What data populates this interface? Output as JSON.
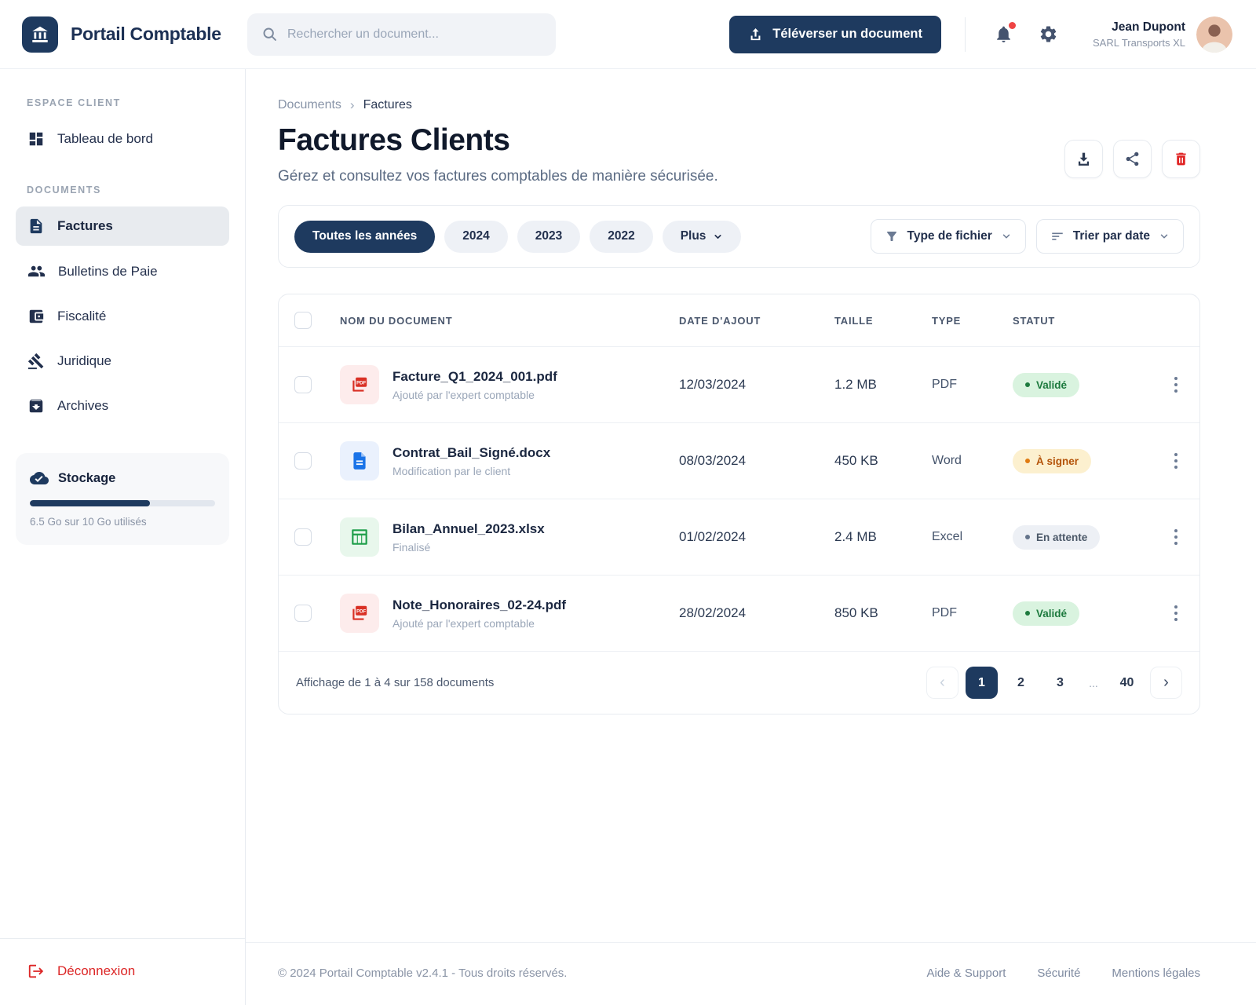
{
  "header": {
    "brand": "Portail Comptable",
    "search_placeholder": "Rechercher un document...",
    "upload_label": "Téléverser un document",
    "user": {
      "name": "Jean Dupont",
      "company": "SARL Transports XL"
    }
  },
  "sidebar": {
    "sections": [
      {
        "title": "ESPACE CLIENT",
        "items": [
          {
            "label": "Tableau de bord",
            "icon": "dashboard-icon",
            "active": false
          }
        ]
      },
      {
        "title": "DOCUMENTS",
        "items": [
          {
            "label": "Factures",
            "icon": "document-icon",
            "active": true
          },
          {
            "label": "Bulletins de Paie",
            "icon": "people-icon",
            "active": false
          },
          {
            "label": "Fiscalité",
            "icon": "wallet-icon",
            "active": false
          },
          {
            "label": "Juridique",
            "icon": "gavel-icon",
            "active": false
          },
          {
            "label": "Archives",
            "icon": "archive-icon",
            "active": false
          }
        ]
      }
    ],
    "storage": {
      "title": "Stockage",
      "usage_text": "6.5 Go sur 10 Go utilisés",
      "percent": 65,
      "icon": "cloud-check-icon"
    },
    "logout_label": "Déconnexion"
  },
  "breadcrumb": {
    "parent": "Documents",
    "current": "Factures"
  },
  "page": {
    "title": "Factures Clients",
    "subtitle": "Gérez et consultez vos factures comptables de manière sécurisée.",
    "actions": [
      "download-button",
      "share-button",
      "delete-button"
    ]
  },
  "filters": {
    "year_pills": [
      {
        "label": "Toutes les années",
        "active": true
      },
      {
        "label": "2024",
        "active": false
      },
      {
        "label": "2023",
        "active": false
      },
      {
        "label": "2022",
        "active": false
      },
      {
        "label": "Plus",
        "active": false,
        "has_chevron": true
      }
    ],
    "type_filter_label": "Type de fichier",
    "sort_label": "Trier par date"
  },
  "table": {
    "columns": [
      "NOM DU DOCUMENT",
      "DATE D'AJOUT",
      "TAILLE",
      "TYPE",
      "STATUT"
    ],
    "rows": [
      {
        "name": "Facture_Q1_2024_001.pdf",
        "subtitle": "Ajouté par l'expert comptable",
        "date": "12/03/2024",
        "size": "1.2 MB",
        "type": "PDF",
        "status": "Validé",
        "status_kind": "success",
        "file_kind": "pdf"
      },
      {
        "name": "Contrat_Bail_Signé.docx",
        "subtitle": "Modification par le client",
        "date": "08/03/2024",
        "size": "450 KB",
        "type": "Word",
        "status": "À signer",
        "status_kind": "warning",
        "file_kind": "word"
      },
      {
        "name": "Bilan_Annuel_2023.xlsx",
        "subtitle": "Finalisé",
        "date": "01/02/2024",
        "size": "2.4 MB",
        "type": "Excel",
        "status": "En attente",
        "status_kind": "neutral",
        "file_kind": "excel"
      },
      {
        "name": "Note_Honoraires_02-24.pdf",
        "subtitle": "Ajouté par l'expert comptable",
        "date": "28/02/2024",
        "size": "850 KB",
        "type": "PDF",
        "status": "Validé",
        "status_kind": "success",
        "file_kind": "pdf"
      }
    ]
  },
  "pagination": {
    "summary": "Affichage de 1 à 4 sur 158 documents",
    "pages": [
      "1",
      "2",
      "3",
      "40"
    ],
    "ellipsis": "...",
    "active_page": "1"
  },
  "footer": {
    "copyright": "© 2024 Portail Comptable v2.4.1 - Tous droits réservés.",
    "links": [
      "Aide & Support",
      "Sécurité",
      "Mentions légales"
    ]
  },
  "colors": {
    "brand_navy": "#1e3a5f",
    "danger_red": "#dc2626",
    "success_bg": "#d9f3df",
    "success_text": "#1d7a3e",
    "warning_bg": "#fcf0cf",
    "warning_text": "#b45309",
    "neutral_bg": "#edf0f5",
    "neutral_text": "#4b5868",
    "pdf_red": "#d93025",
    "word_blue": "#1a73e8",
    "excel_green": "#1e9e4a"
  },
  "icons": {
    "app-logo": "bank-building",
    "search-icon": "magnifier",
    "upload-icon": "arrow-up-tray",
    "notifications-icon": "bell-with-red-dot",
    "settings-icon": "gear",
    "download-icon": "arrow-down-tray",
    "share-icon": "share-nodes",
    "delete-icon": "trash",
    "filter-icon": "funnel",
    "sort-icon": "sort-lines",
    "chevron-down-icon": "chevron-down",
    "row-menu-icon": "kebab-vertical",
    "logout-icon": "door-arrow-right"
  }
}
